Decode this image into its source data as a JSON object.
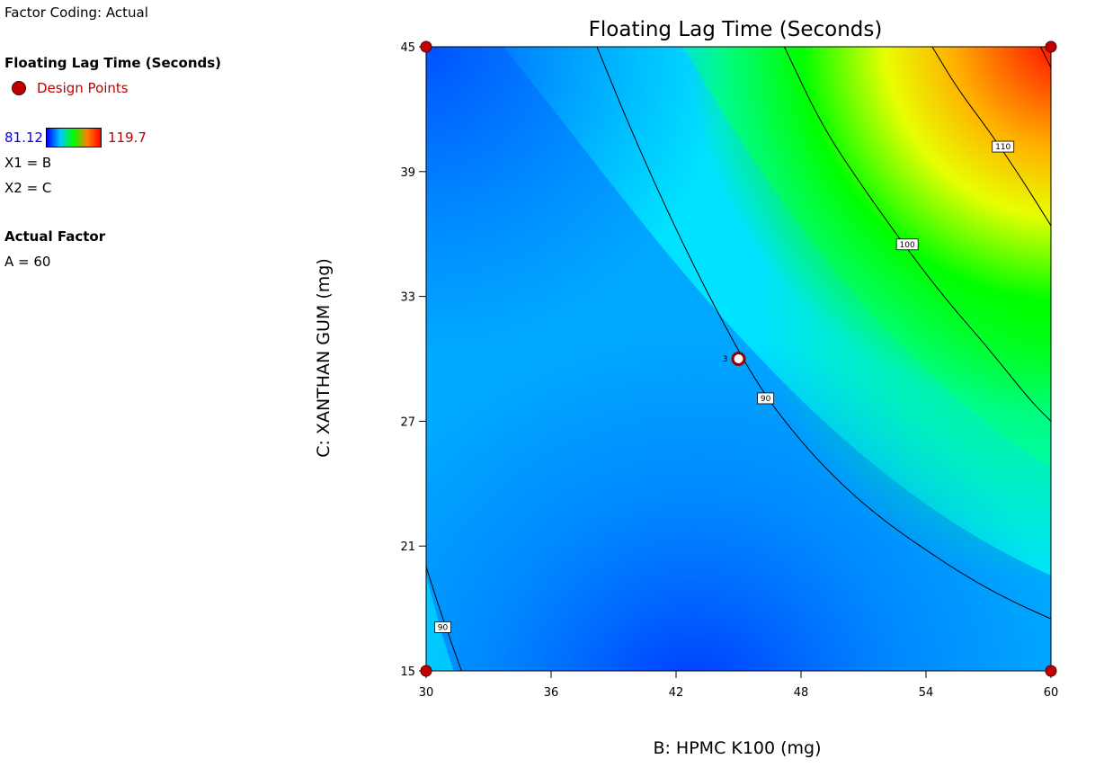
{
  "legend": {
    "factor_coding": "Factor Coding: Actual",
    "response_title": "Floating Lag Time (Seconds)",
    "design_points_label": "Design Points",
    "scale_min": "81.12",
    "scale_max": "119.7",
    "x1": "X1 = B",
    "x2": "X2 = C",
    "actual_factor_title": "Actual Factor",
    "actual_factor_value": "A = 60"
  },
  "chart_data": {
    "type": "contour",
    "title": "Floating Lag Time (Seconds)",
    "xlabel": "B: HPMC K100 (mg)",
    "ylabel": "C: XANTHAN GUM (mg)",
    "xlim": [
      30,
      60
    ],
    "ylim": [
      15,
      45
    ],
    "xticks": [
      "30",
      "36",
      "42",
      "48",
      "54",
      "60"
    ],
    "yticks": [
      "15",
      "21",
      "27",
      "33",
      "39",
      "45"
    ],
    "color_scale": {
      "min": 81.12,
      "max": 119.7,
      "colors": [
        "#0040ff",
        "#00ffff",
        "#00ff00",
        "#ffff00",
        "#ff0000"
      ]
    },
    "contours": [
      {
        "level": "90",
        "points": [
          [
            30,
            20
          ],
          [
            30.8,
            17.5
          ],
          [
            31.7,
            15
          ]
        ]
      },
      {
        "level": "90",
        "points": [
          [
            38.2,
            45
          ],
          [
            40,
            40.6
          ],
          [
            42,
            36.2
          ],
          [
            44,
            32.2
          ],
          [
            46,
            28.6
          ],
          [
            48,
            26
          ],
          [
            50,
            23.9
          ],
          [
            52,
            22.2
          ],
          [
            54,
            20.8
          ],
          [
            56,
            19.5
          ],
          [
            58,
            18.4
          ],
          [
            60,
            17.5
          ]
        ]
      },
      {
        "level": "100",
        "points": [
          [
            47.2,
            45
          ],
          [
            49,
            41.2
          ],
          [
            51,
            38.2
          ],
          [
            53,
            35.4
          ],
          [
            55,
            32.8
          ],
          [
            57,
            30.5
          ],
          [
            59,
            28
          ],
          [
            60,
            27
          ]
        ]
      },
      {
        "level": "110",
        "points": [
          [
            54.3,
            45
          ],
          [
            55.5,
            43
          ],
          [
            57,
            41
          ],
          [
            58.5,
            38.8
          ],
          [
            60,
            36.4
          ]
        ]
      },
      {
        "level": "",
        "points": [
          [
            59.5,
            45
          ],
          [
            60,
            44
          ]
        ]
      }
    ],
    "contour_label_positions": [
      [
        30.8,
        17.1
      ],
      [
        46.3,
        28.1
      ],
      [
        53.1,
        35.5
      ],
      [
        57.7,
        40.2
      ]
    ],
    "design_points": [
      {
        "x": 30,
        "y": 45
      },
      {
        "x": 60,
        "y": 45
      },
      {
        "x": 30,
        "y": 15
      },
      {
        "x": 60,
        "y": 15
      },
      {
        "x": 45,
        "y": 30,
        "label": "3",
        "center": true
      }
    ]
  }
}
